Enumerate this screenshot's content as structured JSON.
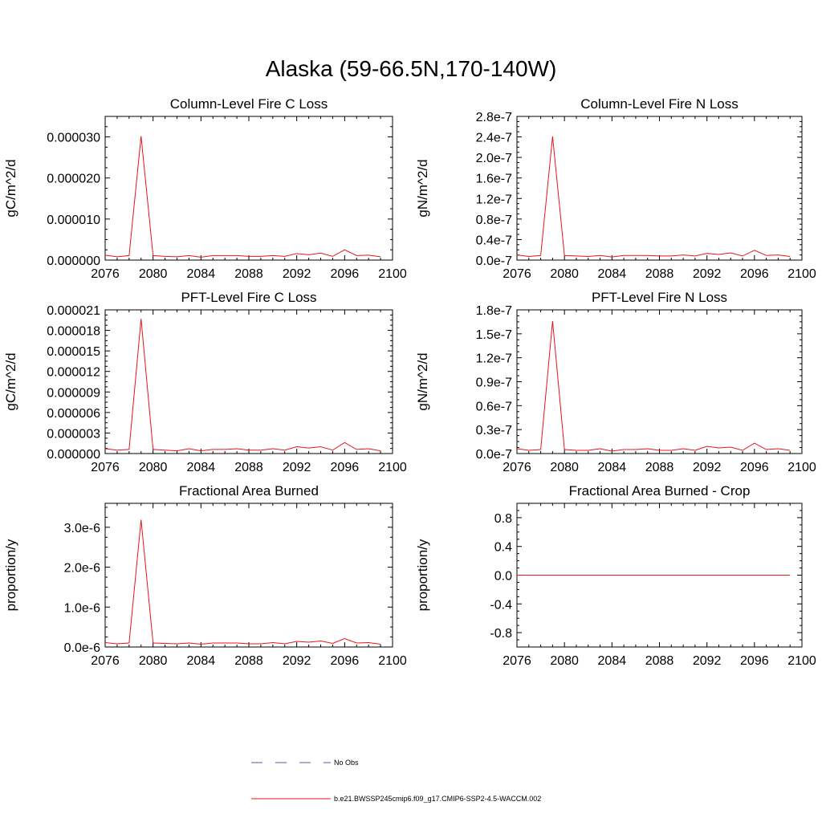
{
  "figure_title": "Alaska (59-66.5N,170-140W)",
  "colors": {
    "model_line": "#e8141b",
    "obs_line": "#5a5ab0",
    "axis": "#000000"
  },
  "legend": [
    {
      "label": "No Obs",
      "style": "dashed",
      "color": "#5a5ab0"
    },
    {
      "label": "b.e21.BWSSP245cmip6.f09_g17.CMIP6-SSP2-4.5-WACCM.002",
      "style": "solid",
      "color": "#e8141b"
    }
  ],
  "chart_data": [
    {
      "type": "line",
      "title": "Column-Level Fire C Loss",
      "ylabel": "gC/m^2/d",
      "xlim": [
        2076,
        2100
      ],
      "ylim": [
        0,
        3.5e-05
      ],
      "xticks": [
        "2076",
        "2080",
        "2084",
        "2088",
        "2092",
        "2096",
        "2100"
      ],
      "yticks": [
        {
          "value": 0,
          "label": "0.000000"
        },
        {
          "value": 1e-05,
          "label": "0.000010"
        },
        {
          "value": 2e-05,
          "label": "0.000020"
        },
        {
          "value": 3e-05,
          "label": "0.000030"
        }
      ],
      "x": [
        2076,
        2077,
        2078,
        2079,
        2080,
        2081,
        2082,
        2083,
        2084,
        2085,
        2086,
        2087,
        2088,
        2089,
        2090,
        2091,
        2092,
        2093,
        2094,
        2095,
        2096,
        2097,
        2098,
        2099
      ],
      "series": [
        {
          "name": "b.e21.BWSSP245cmip6.f09_g17.CMIP6-SSP2-4.5-WACCM.002",
          "values": [
            1.2e-06,
            8e-07,
            1.1e-06,
            3.02e-05,
            1.1e-06,
            9e-07,
            8e-07,
            1.1e-06,
            7e-07,
            1.1e-06,
            1.1e-06,
            1.1e-06,
            9e-07,
            9e-07,
            1.1e-06,
            9e-07,
            1.6e-06,
            1.3e-06,
            1.7e-06,
            9e-07,
            2.5e-06,
            1.1e-06,
            1.2e-06,
            8e-07
          ]
        }
      ]
    },
    {
      "type": "line",
      "title": "Column-Level Fire N Loss",
      "ylabel": "gN/m^2/d",
      "xlim": [
        2076,
        2100
      ],
      "ylim": [
        0,
        2.8e-07
      ],
      "xticks": [
        "2076",
        "2080",
        "2084",
        "2088",
        "2092",
        "2096",
        "2100"
      ],
      "yticks": [
        {
          "value": 0,
          "label": "0.0e-7"
        },
        {
          "value": 4e-08,
          "label": "0.4e-7"
        },
        {
          "value": 8e-08,
          "label": "0.8e-7"
        },
        {
          "value": 1.2e-07,
          "label": "1.2e-7"
        },
        {
          "value": 1.6e-07,
          "label": "1.6e-7"
        },
        {
          "value": 2e-07,
          "label": "2.0e-7"
        },
        {
          "value": 2.4e-07,
          "label": "2.4e-7"
        },
        {
          "value": 2.8e-07,
          "label": "2.8e-7"
        }
      ],
      "x": [
        2076,
        2077,
        2078,
        2079,
        2080,
        2081,
        2082,
        2083,
        2084,
        2085,
        2086,
        2087,
        2088,
        2089,
        2090,
        2091,
        2092,
        2093,
        2094,
        2095,
        2096,
        2097,
        2098,
        2099
      ],
      "series": [
        {
          "name": "b.e21.BWSSP245cmip6.f09_g17.CMIP6-SSP2-4.5-WACCM.002",
          "values": [
            1e-08,
            7e-09,
            9e-09,
            2.41e-07,
            9e-09,
            8e-09,
            7e-09,
            9e-09,
            6e-09,
            9e-09,
            9e-09,
            9e-09,
            8e-09,
            8e-09,
            1e-08,
            8e-09,
            1.3e-08,
            1.1e-08,
            1.4e-08,
            8e-09,
            1.9e-08,
            9e-09,
            1e-08,
            7e-09
          ]
        }
      ]
    },
    {
      "type": "line",
      "title": "PFT-Level Fire C Loss",
      "ylabel": "gC/m^2/d",
      "xlim": [
        2076,
        2100
      ],
      "ylim": [
        0,
        2.1e-05
      ],
      "xticks": [
        "2076",
        "2080",
        "2084",
        "2088",
        "2092",
        "2096",
        "2100"
      ],
      "yticks": [
        {
          "value": 0,
          "label": "0.000000"
        },
        {
          "value": 3e-06,
          "label": "0.000003"
        },
        {
          "value": 6e-06,
          "label": "0.000006"
        },
        {
          "value": 9e-06,
          "label": "0.000009"
        },
        {
          "value": 1.2e-05,
          "label": "0.000012"
        },
        {
          "value": 1.5e-05,
          "label": "0.000015"
        },
        {
          "value": 1.8e-05,
          "label": "0.000018"
        },
        {
          "value": 2.1e-05,
          "label": "0.000021"
        }
      ],
      "x": [
        2076,
        2077,
        2078,
        2079,
        2080,
        2081,
        2082,
        2083,
        2084,
        2085,
        2086,
        2087,
        2088,
        2089,
        2090,
        2091,
        2092,
        2093,
        2094,
        2095,
        2096,
        2097,
        2098,
        2099
      ],
      "series": [
        {
          "name": "b.e21.BWSSP245cmip6.f09_g17.CMIP6-SSP2-4.5-WACCM.002",
          "values": [
            7e-07,
            5e-07,
            6e-07,
            1.97e-05,
            6e-07,
            5e-07,
            4e-07,
            7e-07,
            4e-07,
            6e-07,
            6e-07,
            7e-07,
            5e-07,
            5e-07,
            7e-07,
            5e-07,
            1e-06,
            8e-07,
            1e-06,
            5e-07,
            1.6e-06,
            6e-07,
            7e-07,
            4e-07
          ]
        }
      ]
    },
    {
      "type": "line",
      "title": "PFT-Level Fire N Loss",
      "ylabel": "gN/m^2/d",
      "xlim": [
        2076,
        2100
      ],
      "ylim": [
        0,
        1.8e-07
      ],
      "xticks": [
        "2076",
        "2080",
        "2084",
        "2088",
        "2092",
        "2096",
        "2100"
      ],
      "yticks": [
        {
          "value": 0,
          "label": "0.0e-7"
        },
        {
          "value": 3e-08,
          "label": "0.3e-7"
        },
        {
          "value": 6e-08,
          "label": "0.6e-7"
        },
        {
          "value": 9e-08,
          "label": "0.9e-7"
        },
        {
          "value": 1.2e-07,
          "label": "1.2e-7"
        },
        {
          "value": 1.5e-07,
          "label": "1.5e-7"
        },
        {
          "value": 1.8e-07,
          "label": "1.8e-7"
        }
      ],
      "x": [
        2076,
        2077,
        2078,
        2079,
        2080,
        2081,
        2082,
        2083,
        2084,
        2085,
        2086,
        2087,
        2088,
        2089,
        2090,
        2091,
        2092,
        2093,
        2094,
        2095,
        2096,
        2097,
        2098,
        2099
      ],
      "series": [
        {
          "name": "b.e21.BWSSP245cmip6.f09_g17.CMIP6-SSP2-4.5-WACCM.002",
          "values": [
            6e-09,
            4e-09,
            5e-09,
            1.66e-07,
            5e-09,
            4e-09,
            4e-09,
            6e-09,
            3e-09,
            5e-09,
            5e-09,
            6e-09,
            4e-09,
            4e-09,
            6e-09,
            4e-09,
            9e-09,
            7e-09,
            8e-09,
            4e-09,
            1.3e-08,
            5e-09,
            6e-09,
            4e-09
          ]
        }
      ]
    },
    {
      "type": "line",
      "title": "Fractional Area Burned",
      "ylabel": "proportion/y",
      "xlim": [
        2076,
        2100
      ],
      "ylim": [
        0,
        3.6e-06
      ],
      "xticks": [
        "2076",
        "2080",
        "2084",
        "2088",
        "2092",
        "2096",
        "2100"
      ],
      "yticks": [
        {
          "value": 0,
          "label": "0.0e-6"
        },
        {
          "value": 1e-06,
          "label": "1.0e-6"
        },
        {
          "value": 2e-06,
          "label": "2.0e-6"
        },
        {
          "value": 3e-06,
          "label": "3.0e-6"
        }
      ],
      "x": [
        2076,
        2077,
        2078,
        2079,
        2080,
        2081,
        2082,
        2083,
        2084,
        2085,
        2086,
        2087,
        2088,
        2089,
        2090,
        2091,
        2092,
        2093,
        2094,
        2095,
        2096,
        2097,
        2098,
        2099
      ],
      "series": [
        {
          "name": "b.e21.BWSSP245cmip6.f09_g17.CMIP6-SSP2-4.5-WACCM.002",
          "values": [
            1.1e-07,
            8e-08,
            1e-07,
            3.19e-06,
            1e-07,
            9e-08,
            8e-08,
            1e-07,
            7e-08,
            1e-07,
            1e-07,
            1e-07,
            8e-08,
            8e-08,
            1.1e-07,
            8e-08,
            1.4e-07,
            1.2e-07,
            1.5e-07,
            9e-08,
            2.1e-07,
            1e-07,
            1.1e-07,
            7e-08
          ]
        }
      ]
    },
    {
      "type": "line",
      "title": "Fractional Area Burned - Crop",
      "ylabel": "proportion/y",
      "xlim": [
        2076,
        2100
      ],
      "ylim": [
        -1.0,
        1.0
      ],
      "xticks": [
        "2076",
        "2080",
        "2084",
        "2088",
        "2092",
        "2096",
        "2100"
      ],
      "yticks": [
        {
          "value": -0.8,
          "label": "-0.8"
        },
        {
          "value": -0.4,
          "label": "-0.4"
        },
        {
          "value": 0,
          "label": "0.0"
        },
        {
          "value": 0.4,
          "label": "0.4"
        },
        {
          "value": 0.8,
          "label": "0.8"
        }
      ],
      "x": [
        2076,
        2077,
        2078,
        2079,
        2080,
        2081,
        2082,
        2083,
        2084,
        2085,
        2086,
        2087,
        2088,
        2089,
        2090,
        2091,
        2092,
        2093,
        2094,
        2095,
        2096,
        2097,
        2098,
        2099
      ],
      "series": [
        {
          "name": "b.e21.BWSSP245cmip6.f09_g17.CMIP6-SSP2-4.5-WACCM.002",
          "values": [
            0,
            0,
            0,
            0,
            0,
            0,
            0,
            0,
            0,
            0,
            0,
            0,
            0,
            0,
            0,
            0,
            0,
            0,
            0,
            0,
            0,
            0,
            0,
            0
          ]
        }
      ]
    }
  ]
}
